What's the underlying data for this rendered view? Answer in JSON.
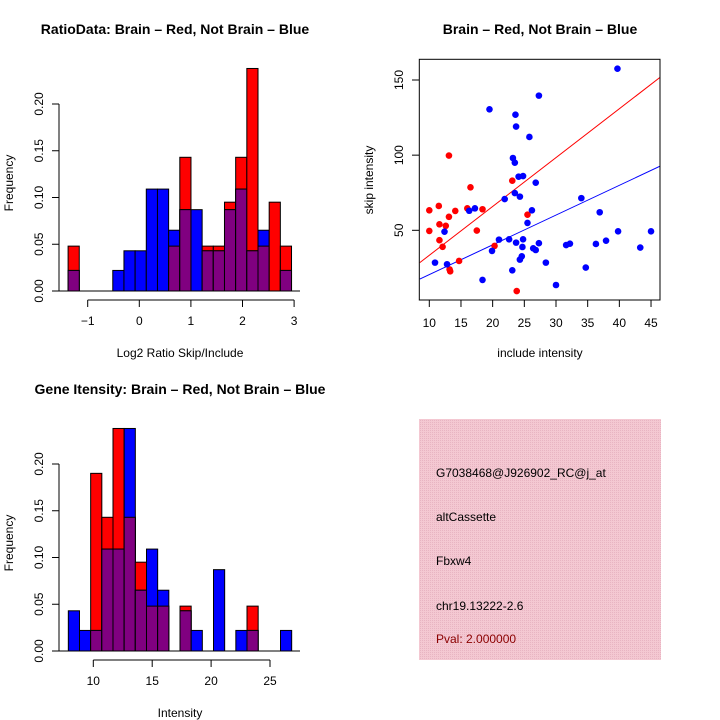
{
  "colors": {
    "brain": "#ff0000",
    "not_brain": "#0000ff",
    "overlap": "#800080",
    "panel": "#f2c4cf",
    "pval": "#8b0000"
  },
  "chart_data": [
    {
      "type": "bar",
      "title": "RatioData: Brain – Red, Not Brain – Blue",
      "xlabel": "Log2 Ratio Skip/Include",
      "ylabel": "Frequency",
      "xlim": [
        -1.4,
        3.0
      ],
      "ylim": [
        0,
        0.24
      ],
      "xticks": [
        "-1",
        "0",
        "1",
        "2",
        "3"
      ],
      "yticks": [
        "0.00",
        "0.05",
        "0.10",
        "0.15",
        "0.20"
      ],
      "bin_start": -1.38,
      "bin_width": 0.2165,
      "series": [
        {
          "name": "Brain",
          "color": "red",
          "values": [
            0.048,
            0,
            0,
            0,
            0,
            0,
            0,
            0,
            0,
            0.048,
            0.143,
            0,
            0.048,
            0.048,
            0.095,
            0.143,
            0.238,
            0.048,
            0.095,
            0.048
          ]
        },
        {
          "name": "Not Brain",
          "color": "blue",
          "values": [
            0.022,
            0,
            0,
            0,
            0.022,
            0.043,
            0.043,
            0.109,
            0.109,
            0.065,
            0.087,
            0.087,
            0.043,
            0.043,
            0.087,
            0.109,
            0.043,
            0.065,
            0,
            0.022
          ]
        }
      ]
    },
    {
      "type": "scatter",
      "title": "Brain – Red, Not Brain – Blue",
      "xlabel": "include intensity",
      "ylabel": "skip intensity",
      "xlim": [
        8.5,
        46.5
      ],
      "ylim": [
        5,
        165
      ],
      "xticks": [
        "10",
        "15",
        "20",
        "25",
        "30",
        "35",
        "40",
        "45"
      ],
      "yticks": [
        "50",
        "100",
        "150"
      ],
      "series": [
        {
          "name": "Brain",
          "color": "red",
          "fit": {
            "slope": 3.25,
            "intercept": 0.87
          },
          "points": [
            [
              10,
              63.3
            ],
            [
              10,
              49.6
            ],
            [
              11.5,
              66.2
            ],
            [
              11.6,
              54
            ],
            [
              11.6,
              43.4
            ],
            [
              12.1,
              39
            ],
            [
              12.6,
              53
            ],
            [
              13.1,
              99.7
            ],
            [
              13.1,
              59
            ],
            [
              13.2,
              24
            ],
            [
              13.3,
              22.7
            ],
            [
              14.1,
              62.9
            ],
            [
              14.7,
              29.6
            ],
            [
              16,
              64.6
            ],
            [
              16.5,
              78.6
            ],
            [
              17.5,
              49.8
            ],
            [
              18.4,
              64
            ],
            [
              20.3,
              39.6
            ],
            [
              23.1,
              83
            ],
            [
              23.8,
              9.6
            ],
            [
              25.5,
              60.4
            ]
          ]
        },
        {
          "name": "Not Brain",
          "color": "blue",
          "fit": {
            "slope": 1.98,
            "intercept": 0.73
          },
          "points": [
            [
              10.9,
              28.5
            ],
            [
              12.4,
              49.1
            ],
            [
              12.8,
              27.4
            ],
            [
              16.3,
              63
            ],
            [
              17.2,
              64.6
            ],
            [
              18.4,
              17
            ],
            [
              19.5,
              130.5
            ],
            [
              19.9,
              36.3
            ],
            [
              21,
              43.8
            ],
            [
              21.9,
              70.8
            ],
            [
              22.6,
              44
            ],
            [
              23.1,
              23.4
            ],
            [
              23.2,
              98.1
            ],
            [
              23.5,
              95
            ],
            [
              23.6,
              126.9
            ],
            [
              23.7,
              119
            ],
            [
              23.7,
              41.8
            ],
            [
              23.5,
              74.8
            ],
            [
              24.1,
              85.7
            ],
            [
              24.3,
              72.4
            ],
            [
              24.8,
              86.1
            ],
            [
              24.7,
              38.9
            ],
            [
              24.8,
              44
            ],
            [
              24.6,
              32.7
            ],
            [
              24.3,
              30.5
            ],
            [
              25.5,
              54.9
            ],
            [
              25.8,
              112.1
            ],
            [
              26.2,
              63.3
            ],
            [
              26.4,
              38
            ],
            [
              26.8,
              36.9
            ],
            [
              26.8,
              81.7
            ],
            [
              27.3,
              41.4
            ],
            [
              27.3,
              139.6
            ],
            [
              28.4,
              28.5
            ],
            [
              30,
              13.6
            ],
            [
              31.6,
              40.2
            ],
            [
              32.2,
              41.1
            ],
            [
              34,
              71.4
            ],
            [
              34.7,
              25.2
            ],
            [
              36.3,
              40.9
            ],
            [
              36.9,
              62
            ],
            [
              37.9,
              43.1
            ],
            [
              39.7,
              157.5
            ],
            [
              39.8,
              49.3
            ],
            [
              43.3,
              38.5
            ],
            [
              45,
              49.3
            ]
          ]
        }
      ]
    },
    {
      "type": "bar",
      "title": "Gene Itensity: Brain – Red, Not Brain – Blue",
      "xlabel": "Intensity",
      "ylabel": "Frequency",
      "xlim": [
        7.9,
        27
      ],
      "ylim": [
        0,
        0.24
      ],
      "xticks": [
        "10",
        "15",
        "20",
        "25"
      ],
      "yticks": [
        "0.00",
        "0.05",
        "0.10",
        "0.15",
        "0.20"
      ],
      "bin_start": 7.88,
      "bin_width": 0.948,
      "series": [
        {
          "name": "Brain",
          "color": "red",
          "values": [
            0,
            0,
            0.19,
            0.143,
            0.238,
            0.143,
            0.095,
            0.048,
            0.048,
            0,
            0.048,
            0,
            0,
            0,
            0,
            0,
            0.048,
            0,
            0,
            0
          ]
        },
        {
          "name": "Not Brain",
          "color": "blue",
          "values": [
            0.043,
            0.022,
            0.022,
            0.109,
            0.109,
            0.238,
            0.065,
            0.109,
            0.065,
            0,
            0.043,
            0.022,
            0,
            0.087,
            0,
            0.022,
            0.022,
            0,
            0,
            0.022
          ]
        }
      ]
    }
  ],
  "info": {
    "probe_id": "G7038468@J926902_RC@j_at",
    "event_type": "altCassette",
    "gene": "Fbxw4",
    "location": "chr19.13222-2.6",
    "pval": "Pval: 2.000000"
  }
}
